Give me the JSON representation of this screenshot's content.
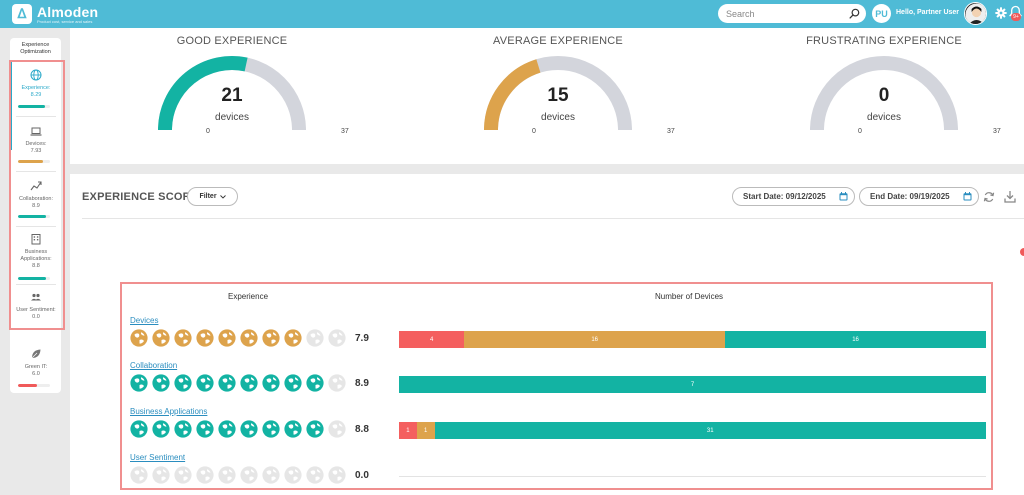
{
  "header": {
    "brand_name": "Almoden",
    "brand_tagline": "Product cost, service and sales",
    "search_placeholder": "Search",
    "user_initials": "PU",
    "greeting": "Hello, Partner User",
    "notification_count": "9+",
    "colors": {
      "bar": "#4fbbd6"
    }
  },
  "sidebar": {
    "title": "Experience Optimization",
    "items": [
      {
        "label": "Experience:",
        "value": "8.29",
        "icon": "globe-icon",
        "bar_fraction": 0.83,
        "bar_color": "#13b3a3",
        "active": true
      },
      {
        "label": "Devices:",
        "value": "7.93",
        "icon": "laptop-icon",
        "bar_fraction": 0.79,
        "bar_color": "#dda34c",
        "active": false
      },
      {
        "label": "Collaboration:",
        "value": "8.9",
        "icon": "trend-icon",
        "bar_fraction": 0.89,
        "bar_color": "#13b3a3",
        "active": false
      },
      {
        "label": "Business Applications:",
        "value": "8.8",
        "icon": "building-icon",
        "bar_fraction": 0.88,
        "bar_color": "#13b3a3",
        "active": false
      },
      {
        "label": "User Sentiment:",
        "value": "0.0",
        "icon": "users-icon",
        "bar_fraction": 0.0,
        "bar_color": "#13b3a3",
        "active": false
      },
      {
        "label": "Green IT:",
        "value": "6.0",
        "icon": "leaf-icon",
        "bar_fraction": 0.6,
        "bar_color": "#f05a5a",
        "active": false
      }
    ]
  },
  "gauges": [
    {
      "title": "GOOD EXPERIENCE",
      "value": 21,
      "min": 0,
      "max": 37,
      "unit": "devices",
      "color": "#13b3a3"
    },
    {
      "title": "AVERAGE EXPERIENCE",
      "value": 15,
      "min": 0,
      "max": 37,
      "unit": "devices",
      "color": "#dda34c"
    },
    {
      "title": "FRUSTRATING EXPERIENCE",
      "value": 0,
      "min": 0,
      "max": 37,
      "unit": "devices",
      "color": "#f05a5a"
    }
  ],
  "score": {
    "title": "EXPERIENCE SCORE",
    "filter_label": "Filter",
    "start_date": "Start Date: 09/12/2025",
    "end_date": "End Date: 09/19/2025",
    "col_experience": "Experience",
    "col_devices": "Number of Devices",
    "colors": {
      "bad": "#f45f5f",
      "average": "#dda34c",
      "good": "#13b3a3",
      "empty": "#e6e6e6"
    },
    "rows": [
      {
        "name": "Devices",
        "score": "7.9",
        "globe_colors": [
          "average",
          "average",
          "average",
          "average",
          "average",
          "average",
          "average",
          "average",
          "empty",
          "empty"
        ],
        "segments": [
          {
            "kind": "bad",
            "count": 4
          },
          {
            "kind": "average",
            "count": 16
          },
          {
            "kind": "good",
            "count": 16
          }
        ]
      },
      {
        "name": "Collaboration",
        "score": "8.9",
        "globe_colors": [
          "good",
          "good",
          "good",
          "good",
          "good",
          "good",
          "good",
          "good",
          "good",
          "empty"
        ],
        "segments": [
          {
            "kind": "good",
            "count": 7
          }
        ]
      },
      {
        "name": "Business Applications",
        "score": "8.8",
        "globe_colors": [
          "good",
          "good",
          "good",
          "good",
          "good",
          "good",
          "good",
          "good",
          "good",
          "empty"
        ],
        "segments": [
          {
            "kind": "bad",
            "count": 1
          },
          {
            "kind": "average",
            "count": 1
          },
          {
            "kind": "good",
            "count": 31
          }
        ]
      },
      {
        "name": "User Sentiment",
        "score": "0.0",
        "globe_colors": [
          "empty",
          "empty",
          "empty",
          "empty",
          "empty",
          "empty",
          "empty",
          "empty",
          "empty",
          "empty"
        ],
        "segments": []
      }
    ]
  }
}
